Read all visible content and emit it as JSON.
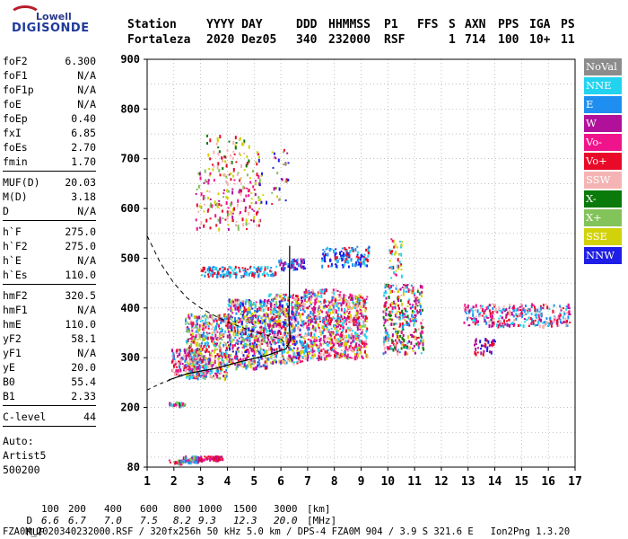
{
  "logo": {
    "brand": "Lowell",
    "product": "DIGISONDE"
  },
  "header": {
    "cols": [
      "Station",
      "YYYY DAY",
      "DDD",
      "HHMMSS",
      "P1",
      "FFS",
      "S",
      "AXN",
      "PPS",
      "IGA",
      "PS"
    ],
    "vals": [
      "Fortaleza",
      "2020 Dez05",
      "340",
      "232000",
      "RSF",
      "1",
      "714",
      "100",
      "10+",
      "11"
    ]
  },
  "params": {
    "g1": [
      [
        "foF2",
        "6.300"
      ],
      [
        "foF1",
        "N/A"
      ],
      [
        "foF1p",
        "N/A"
      ],
      [
        "foE",
        "N/A"
      ],
      [
        "foEp",
        "0.40"
      ],
      [
        "fxI",
        "6.85"
      ],
      [
        "foEs",
        "2.70"
      ],
      [
        "fmin",
        "1.70"
      ]
    ],
    "g2": [
      [
        "MUF(D)",
        "20.03"
      ],
      [
        "M(D)",
        "3.18"
      ],
      [
        "D",
        "N/A"
      ]
    ],
    "g3": [
      [
        "h`F",
        "275.0"
      ],
      [
        "h`F2",
        "275.0"
      ],
      [
        "h`E",
        "N/A"
      ],
      [
        "h`Es",
        "110.0"
      ]
    ],
    "g4": [
      [
        "hmF2",
        "320.5"
      ],
      [
        "hmF1",
        "N/A"
      ],
      [
        "hmE",
        "110.0"
      ],
      [
        "yF2",
        "58.1"
      ],
      [
        "yF1",
        "N/A"
      ],
      [
        "yE",
        "20.0"
      ],
      [
        "B0",
        "55.4"
      ],
      [
        "B1",
        "2.33"
      ]
    ],
    "g5": [
      [
        "C-level",
        "44"
      ]
    ],
    "auto": [
      "Auto:",
      "Artist5",
      "500200"
    ]
  },
  "legend": [
    {
      "label": "NoVal",
      "color": "#8c8c8c"
    },
    {
      "label": "NNE",
      "color": "#22d3f0"
    },
    {
      "label": "E",
      "color": "#1e8ff0"
    },
    {
      "label": "W",
      "color": "#b0109a"
    },
    {
      "label": "Vo-",
      "color": "#f0148c"
    },
    {
      "label": "Vo+",
      "color": "#e80a28"
    },
    {
      "label": "SSW",
      "color": "#f5b4b4"
    },
    {
      "label": "X-",
      "color": "#0a7a0a"
    },
    {
      "label": "X+",
      "color": "#82c35a"
    },
    {
      "label": "SSE",
      "color": "#d2d20a"
    },
    {
      "label": "NNW",
      "color": "#1e1ee6"
    }
  ],
  "chart_data": {
    "type": "scatter",
    "title": "",
    "xlabel": "",
    "ylabel": "",
    "xlim": [
      1,
      17
    ],
    "ylim": [
      80,
      900
    ],
    "xticks": [
      1,
      2,
      3,
      4,
      5,
      6,
      7,
      8,
      9,
      10,
      11,
      12,
      13,
      14,
      15,
      16,
      17
    ],
    "yticks": [
      80,
      200,
      300,
      400,
      500,
      600,
      700,
      800,
      900
    ],
    "grid": true,
    "clusters": [
      {
        "xmin": 1.8,
        "xmax": 2.3,
        "ymin": 88,
        "ymax": 96,
        "n": 25,
        "colors": [
          5,
          4,
          8,
          2
        ]
      },
      {
        "xmin": 2.3,
        "xmax": 2.9,
        "ymin": 92,
        "ymax": 104,
        "n": 55,
        "colors": [
          1,
          2,
          4,
          3,
          8
        ]
      },
      {
        "xmin": 2.9,
        "xmax": 3.8,
        "ymin": 96,
        "ymax": 104,
        "n": 60,
        "colors": [
          3,
          4,
          5
        ]
      },
      {
        "xmin": 1.8,
        "xmax": 2.4,
        "ymin": 205,
        "ymax": 212,
        "n": 30,
        "colors": [
          7,
          8,
          1,
          4
        ]
      },
      {
        "xmin": 1.9,
        "xmax": 3.2,
        "ymin": 265,
        "ymax": 320,
        "n": 170,
        "colors": [
          5,
          4,
          6,
          3,
          2
        ]
      },
      {
        "xmin": 2.4,
        "xmax": 4.0,
        "ymin": 260,
        "ymax": 390,
        "n": 480,
        "colors": [
          5,
          4,
          2,
          1,
          3,
          9,
          6,
          8
        ]
      },
      {
        "xmin": 4.0,
        "xmax": 5.5,
        "ymin": 280,
        "ymax": 420,
        "n": 560,
        "colors": [
          5,
          4,
          2,
          1,
          3,
          9,
          6,
          8,
          10
        ]
      },
      {
        "xmin": 5.5,
        "xmax": 6.8,
        "ymin": 290,
        "ymax": 430,
        "n": 500,
        "colors": [
          5,
          4,
          2,
          1,
          3,
          9,
          6,
          8,
          10
        ]
      },
      {
        "xmin": 6.8,
        "xmax": 8.2,
        "ymin": 300,
        "ymax": 440,
        "n": 480,
        "colors": [
          5,
          4,
          9,
          6,
          2,
          1,
          3
        ]
      },
      {
        "xmin": 8.2,
        "xmax": 9.2,
        "ymin": 300,
        "ymax": 430,
        "n": 340,
        "colors": [
          5,
          4,
          9,
          6,
          3,
          1
        ]
      },
      {
        "xmin": 9.8,
        "xmax": 11.3,
        "ymin": 310,
        "ymax": 450,
        "n": 340,
        "colors": [
          5,
          4,
          9,
          6,
          2,
          1,
          3,
          7
        ]
      },
      {
        "xmin": 12.8,
        "xmax": 16.8,
        "ymin": 365,
        "ymax": 410,
        "n": 320,
        "colors": [
          1,
          2,
          3,
          5,
          4,
          6
        ]
      },
      {
        "xmin": 13.2,
        "xmax": 14.0,
        "ymin": 310,
        "ymax": 340,
        "n": 40,
        "colors": [
          10,
          3,
          5
        ]
      },
      {
        "xmin": 3.0,
        "xmax": 5.8,
        "ymin": 465,
        "ymax": 485,
        "n": 140,
        "colors": [
          2,
          1,
          5
        ]
      },
      {
        "xmin": 5.9,
        "xmax": 6.9,
        "ymin": 480,
        "ymax": 500,
        "n": 60,
        "colors": [
          10,
          3,
          2
        ]
      },
      {
        "xmin": 7.5,
        "xmax": 9.3,
        "ymin": 485,
        "ymax": 525,
        "n": 130,
        "colors": [
          10,
          1,
          2,
          5
        ]
      },
      {
        "xmin": 10.0,
        "xmax": 10.5,
        "ymin": 460,
        "ymax": 540,
        "n": 40,
        "colors": [
          5,
          4,
          9,
          1
        ]
      },
      {
        "xmin": 2.8,
        "xmax": 5.2,
        "ymin": 560,
        "ymax": 680,
        "n": 170,
        "colors": [
          3,
          9,
          6,
          5,
          4,
          8
        ]
      },
      {
        "xmin": 3.2,
        "xmax": 4.8,
        "ymin": 670,
        "ymax": 750,
        "n": 60,
        "colors": [
          9,
          6,
          7,
          5
        ]
      },
      {
        "xmin": 5.0,
        "xmax": 6.3,
        "ymin": 610,
        "ymax": 720,
        "n": 45,
        "colors": [
          9,
          5,
          3,
          8,
          10
        ]
      }
    ],
    "trace": [
      [
        1.8,
        255
      ],
      [
        2.5,
        268
      ],
      [
        3.5,
        278
      ],
      [
        4.5,
        292
      ],
      [
        5.5,
        305
      ],
      [
        6.2,
        318
      ],
      [
        6.35,
        335
      ],
      [
        6.3,
        380
      ],
      [
        6.32,
        430
      ],
      [
        6.33,
        525
      ]
    ],
    "dashed": [
      [
        1.0,
        545
      ],
      [
        1.5,
        490
      ],
      [
        2.0,
        450
      ],
      [
        2.5,
        420
      ],
      [
        3.0,
        400
      ],
      [
        3.5,
        385
      ],
      [
        4.0,
        372
      ],
      [
        4.5,
        362
      ],
      [
        5.0,
        352
      ],
      [
        5.5,
        345
      ],
      [
        6.0,
        338
      ],
      [
        6.3,
        320
      ]
    ],
    "dashed_low": [
      [
        1.0,
        235
      ],
      [
        1.5,
        248
      ],
      [
        2.0,
        258
      ]
    ]
  },
  "bottom": {
    "d_label": "D",
    "d_values": [
      "100",
      "200",
      "400",
      "600",
      "800",
      "1000",
      "1500",
      "3000",
      "[km]"
    ],
    "muf_label": "MUF",
    "muf_values": [
      "6.6",
      "6.7",
      "7.0",
      "7.5",
      "8.2",
      "9.3",
      "12.3",
      "20.0",
      "[MHz]"
    ],
    "footer": "FZA0M_2020340232000.RSF / 320fx256h 50 kHz 5.0 km / DPS-4 FZA0M 904 / 3.9 S 321.6 E   Ion2Png 1.3.20"
  }
}
